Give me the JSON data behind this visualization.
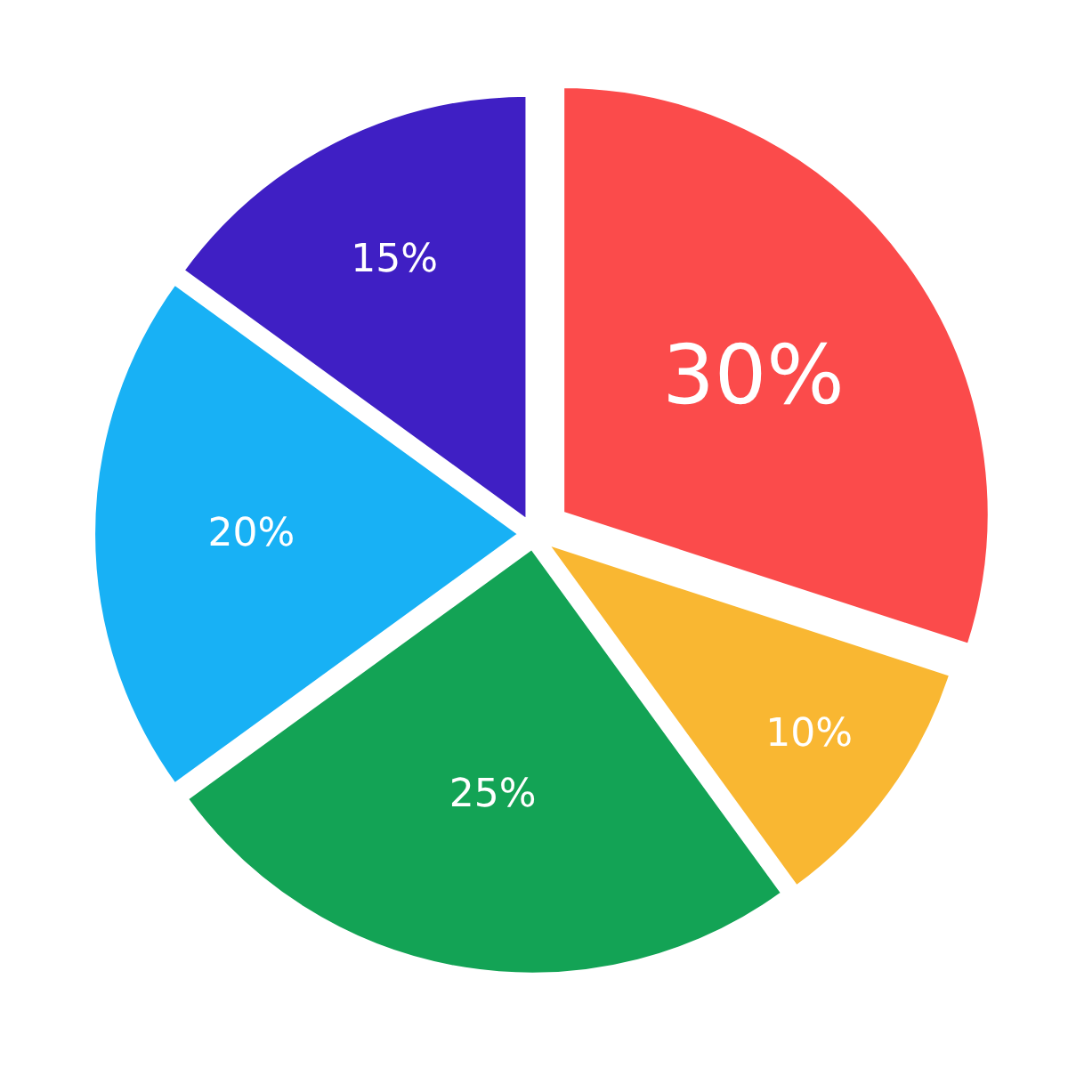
{
  "chart_data": {
    "type": "pie",
    "categories": [
      null,
      null,
      null,
      null,
      null
    ],
    "values": [
      30,
      10,
      25,
      20,
      15
    ],
    "colors": [
      "#fb4b4b",
      "#f9b732",
      "#13a355",
      "#18b1f5",
      "#3f1fc4"
    ],
    "value_labels": [
      "30%",
      "10%",
      "25%",
      "20%",
      "15%"
    ],
    "legend": false
  }
}
